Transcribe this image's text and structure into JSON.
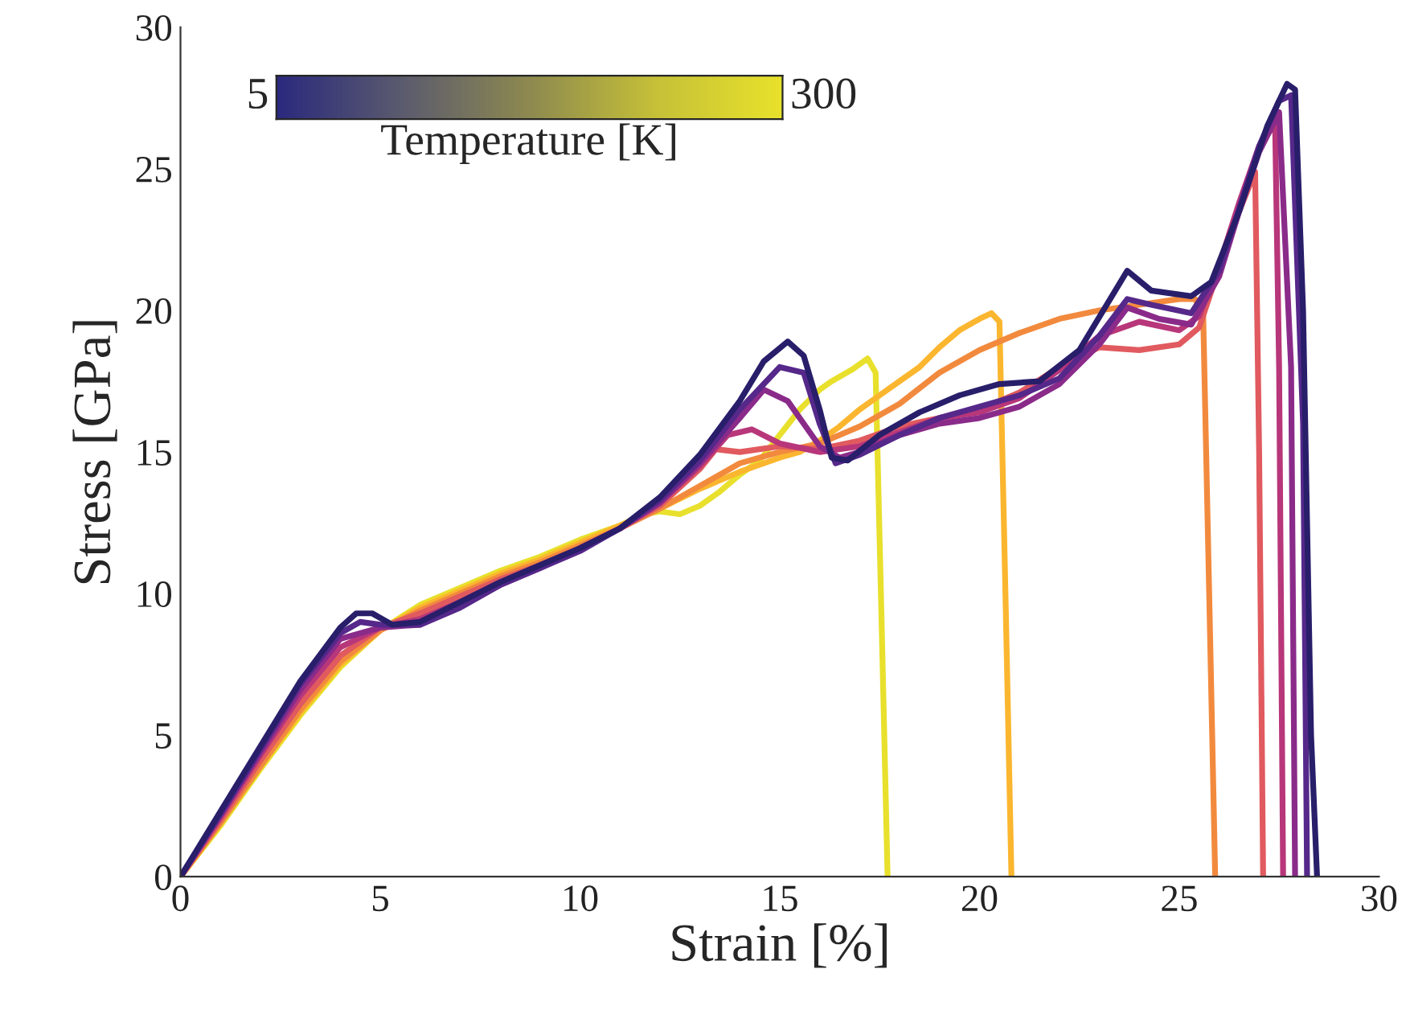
{
  "chart_data": {
    "type": "line",
    "xlabel": "Strain [%]",
    "ylabel": "Stress [GPa]",
    "xlim": [
      0,
      30
    ],
    "ylim": [
      0,
      30
    ],
    "xticks": [
      0,
      5,
      10,
      15,
      20,
      25,
      30
    ],
    "yticks": [
      0,
      5,
      10,
      15,
      20,
      25,
      30
    ],
    "grid": false,
    "marker": "none",
    "line_style": "solid",
    "annotations": [
      "5",
      "300",
      "Temperature [K]"
    ],
    "series": [
      {
        "color": "#e8e02c",
        "x": [
          0,
          1,
          2,
          3,
          4,
          5,
          6,
          7,
          8,
          9,
          10,
          11,
          11.6,
          12,
          12.5,
          13,
          13.5,
          14,
          14.5,
          15,
          15.5,
          16,
          16.3,
          16.8,
          17.2,
          17.4,
          17.55,
          17.7
        ],
        "values": [
          0,
          1.8,
          3.8,
          5.7,
          7.4,
          8.7,
          9.6,
          10.2,
          10.8,
          11.3,
          11.9,
          12.4,
          12.8,
          12.9,
          12.8,
          13.1,
          13.6,
          14.2,
          14.7,
          15.6,
          16.5,
          17.2,
          17.5,
          17.9,
          18.3,
          17.8,
          9,
          0
        ]
      },
      {
        "color": "#fbb62f",
        "x": [
          0,
          1,
          2,
          3,
          4,
          5,
          6,
          7,
          8,
          9,
          10,
          11,
          12,
          13,
          14,
          15,
          15.5,
          16,
          16.5,
          17,
          17.5,
          18,
          18.5,
          19,
          19.5,
          20,
          20.3,
          20.5,
          20.65,
          20.8
        ],
        "values": [
          0,
          1.9,
          3.9,
          5.8,
          7.5,
          8.7,
          9.5,
          10.1,
          10.7,
          11.2,
          11.8,
          12.4,
          13.0,
          13.7,
          14.3,
          14.8,
          15.0,
          15.4,
          15.9,
          16.5,
          17.0,
          17.5,
          18.0,
          18.7,
          19.3,
          19.7,
          19.9,
          19.6,
          10,
          0
        ]
      },
      {
        "color": "#f28a3e",
        "x": [
          0,
          1,
          2,
          3,
          4,
          5,
          6,
          7,
          8,
          9,
          10,
          11,
          12,
          13,
          14,
          15,
          16,
          17,
          18,
          19,
          20,
          21,
          22,
          23,
          24,
          25,
          25.4,
          25.6,
          25.75,
          25.9
        ],
        "values": [
          0,
          1.9,
          3.9,
          5.9,
          7.6,
          8.7,
          9.4,
          10.0,
          10.6,
          11.1,
          11.7,
          12.3,
          13.0,
          13.8,
          14.6,
          15.0,
          15.3,
          15.9,
          16.7,
          17.8,
          18.6,
          19.2,
          19.7,
          20.0,
          20.2,
          20.4,
          20.4,
          19.8,
          10,
          0
        ]
      },
      {
        "color": "#e05a5f",
        "x": [
          0,
          1,
          2,
          3,
          4,
          5,
          6,
          7,
          8,
          9,
          10,
          11,
          12,
          13,
          13.4,
          14,
          15,
          16,
          17,
          18,
          19,
          20,
          21,
          22,
          23,
          24,
          25,
          25.5,
          26,
          26.5,
          26.9,
          27.0,
          27.1
        ],
        "values": [
          0,
          2.0,
          4.1,
          6.1,
          7.8,
          8.8,
          9.3,
          9.9,
          10.5,
          11.0,
          11.6,
          12.3,
          13.1,
          14.4,
          15.1,
          15.0,
          15.2,
          15.1,
          15.4,
          15.9,
          16.2,
          16.5,
          17.1,
          18.0,
          18.7,
          18.6,
          18.8,
          19.4,
          21.5,
          23.5,
          24.9,
          15,
          0
        ]
      },
      {
        "color": "#b8367a",
        "x": [
          0,
          1,
          2,
          3,
          4,
          5,
          6,
          7,
          8,
          9,
          10,
          11,
          12,
          13,
          13.7,
          14.3,
          15,
          16,
          17,
          18,
          19,
          20,
          21,
          22,
          23,
          24,
          25,
          25.5,
          26,
          26.5,
          27,
          27.4,
          27.5,
          27.6
        ],
        "values": [
          0,
          2.1,
          4.3,
          6.4,
          8.1,
          8.8,
          9.1,
          9.7,
          10.4,
          11.0,
          11.6,
          12.3,
          13.2,
          14.5,
          15.6,
          15.8,
          15.3,
          15.0,
          15.2,
          15.7,
          16.2,
          16.4,
          16.9,
          17.9,
          19.1,
          19.6,
          19.3,
          19.8,
          21.6,
          23.8,
          25.8,
          26.6,
          18,
          0
        ]
      },
      {
        "color": "#8a2b8a",
        "x": [
          0,
          1,
          2,
          3,
          4,
          5,
          6,
          7,
          8,
          9,
          10,
          11,
          12,
          13,
          14,
          14.6,
          15.2,
          16,
          16.5,
          17,
          18,
          19,
          20,
          21,
          22,
          23,
          23.7,
          24.5,
          25.3,
          26,
          26.5,
          27,
          27.5,
          27.8,
          27.9
        ],
        "values": [
          0,
          2.2,
          4.4,
          6.6,
          8.4,
          8.8,
          8.9,
          9.6,
          10.3,
          10.9,
          11.6,
          12.3,
          13.2,
          14.6,
          16.2,
          17.2,
          16.8,
          15.2,
          14.8,
          15.0,
          15.6,
          16.0,
          16.2,
          16.6,
          17.4,
          18.8,
          20.1,
          19.7,
          19.5,
          21.2,
          23.5,
          25.6,
          27.0,
          18,
          0
        ]
      },
      {
        "color": "#55288a",
        "x": [
          0,
          1,
          2,
          3,
          4,
          4.5,
          5,
          6,
          7,
          8,
          9,
          10,
          11,
          12,
          13,
          14,
          15,
          15.6,
          16,
          16.4,
          17,
          18,
          19,
          20,
          21,
          22,
          23,
          23.7,
          24.3,
          25.3,
          26,
          26.5,
          27,
          27.5,
          27.8,
          28.1,
          28.2
        ],
        "values": [
          0,
          2.2,
          4.5,
          6.8,
          8.6,
          9.0,
          8.9,
          8.9,
          9.5,
          10.3,
          10.9,
          11.5,
          12.3,
          13.3,
          14.7,
          16.5,
          18.0,
          17.8,
          16.0,
          14.6,
          14.9,
          15.6,
          16.2,
          16.6,
          17.0,
          17.6,
          19.1,
          20.4,
          20.2,
          19.9,
          21.4,
          23.6,
          25.8,
          27.4,
          27.6,
          16,
          0
        ]
      },
      {
        "color": "#281e6a",
        "x": [
          0,
          1,
          2,
          3,
          4,
          4.4,
          4.8,
          5.3,
          6,
          7,
          8,
          9,
          10,
          11,
          12,
          13,
          14,
          14.6,
          15.2,
          15.6,
          16.0,
          16.3,
          16.7,
          17.5,
          18.5,
          19.5,
          20.5,
          21.5,
          22.5,
          23.7,
          24.3,
          25.3,
          25.8,
          26.5,
          27.2,
          27.7,
          27.9,
          28.1,
          28.3,
          28.45
        ],
        "values": [
          0,
          2.3,
          4.6,
          6.9,
          8.8,
          9.3,
          9.3,
          8.9,
          9.0,
          9.7,
          10.4,
          11.0,
          11.6,
          12.3,
          13.4,
          14.9,
          16.8,
          18.2,
          18.9,
          18.4,
          16.5,
          14.8,
          14.7,
          15.6,
          16.4,
          17.0,
          17.4,
          17.5,
          18.6,
          21.4,
          20.7,
          20.5,
          21.0,
          23.5,
          26.5,
          28.0,
          27.8,
          20,
          5,
          0
        ]
      }
    ]
  }
}
